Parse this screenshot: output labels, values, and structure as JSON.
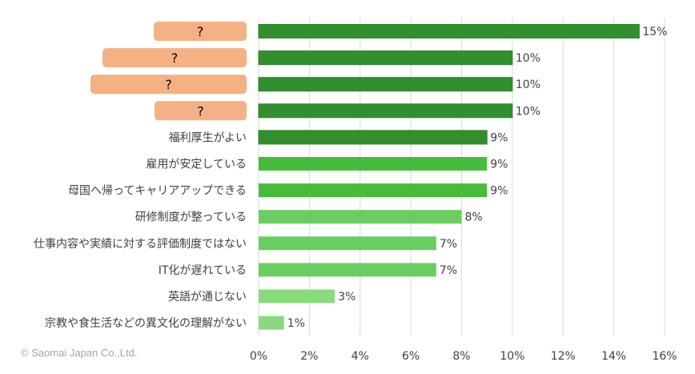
{
  "copyright": "© Saomai Japan Co.,Ltd.",
  "colors": {
    "dark_green": "#31902d",
    "mid_green": "#47bc3c",
    "light_green": "#6acd60",
    "pale_green": "#8ad97f",
    "placeholder_box": "#f4b183",
    "gridline": "#d9d9d9",
    "label_text": "#404040"
  },
  "chart_data": {
    "type": "bar",
    "orientation": "horizontal",
    "categories": [
      "?",
      "?",
      "?",
      "?",
      "福利厚生がよい",
      "雇用が安定している",
      "母国へ帰ってキャリアアップできる",
      "研修制度が整っている",
      "仕事内容や実績に対する評価制度ではない",
      "IT化が遅れている",
      "英語が通じない",
      "宗教や食生活などの異文化の理解がない"
    ],
    "values": [
      15,
      10,
      10,
      10,
      9,
      9,
      9,
      8,
      7,
      7,
      3,
      1
    ],
    "data_labels": [
      "15%",
      "10%",
      "10%",
      "10%",
      "9%",
      "9%",
      "9%",
      "8%",
      "7%",
      "7%",
      "3%",
      "1%"
    ],
    "hidden_categories": [
      true,
      true,
      true,
      true,
      false,
      false,
      false,
      false,
      false,
      false,
      false,
      false
    ],
    "bar_color_groups": [
      "dark",
      "dark",
      "dark",
      "dark",
      "dark",
      "mid",
      "mid",
      "light",
      "light",
      "light",
      "pale",
      "pale"
    ],
    "xlim": [
      0,
      16
    ],
    "x_ticks": [
      "0%",
      "2%",
      "4%",
      "6%",
      "8%",
      "10%",
      "12%",
      "14%",
      "16%"
    ],
    "grid": "vertical",
    "legend": "none"
  }
}
